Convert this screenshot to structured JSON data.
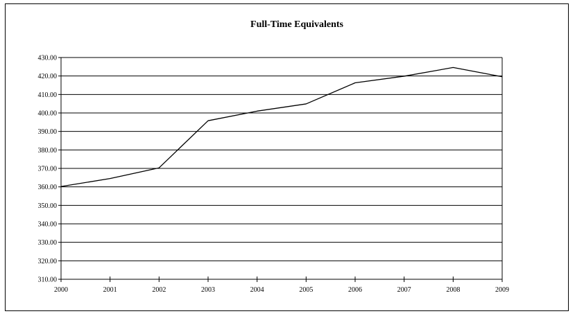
{
  "chart_data": {
    "type": "line",
    "title": "Full-Time Equivalents",
    "xlabel": "",
    "ylabel": "",
    "x": [
      "2000",
      "2001",
      "2002",
      "2003",
      "2004",
      "2005",
      "2006",
      "2007",
      "2008",
      "2009"
    ],
    "series": [
      {
        "values": [
          360.2,
          364.5,
          370.3,
          395.8,
          401.0,
          404.9,
          416.3,
          419.9,
          424.6,
          419.6
        ],
        "color": "#000000"
      }
    ],
    "ylim": [
      310,
      430
    ],
    "ystep": 10,
    "y_tick_format": "0.00",
    "grid": true,
    "legend": "none"
  }
}
